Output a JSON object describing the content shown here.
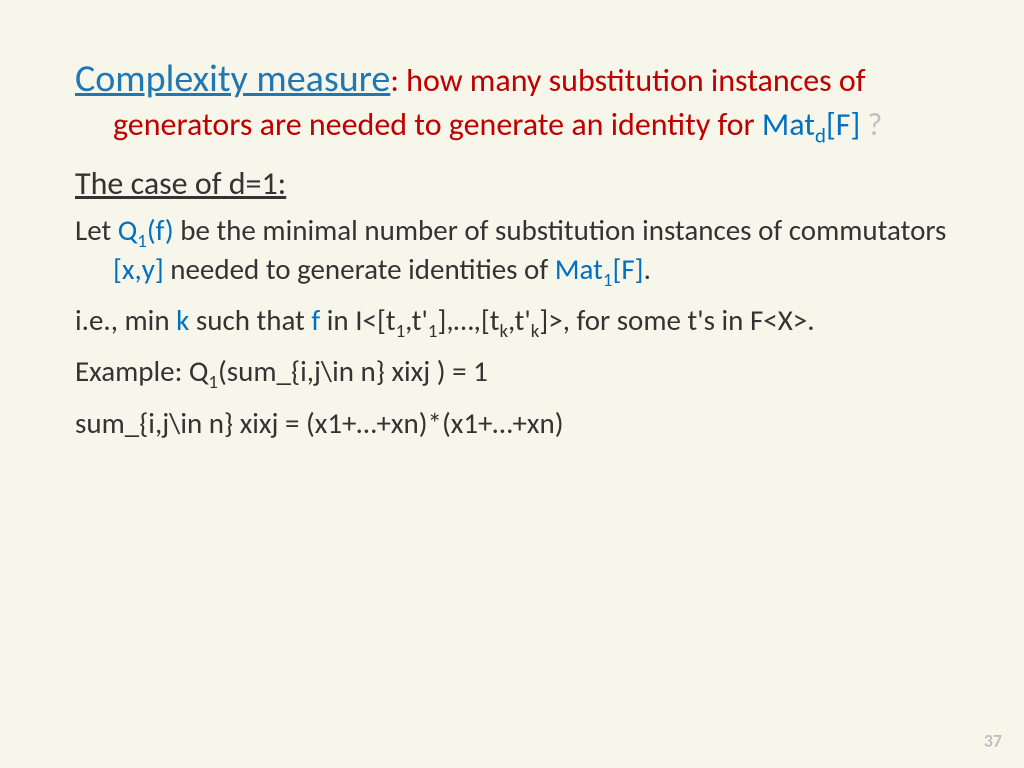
{
  "background_color": "#f7f6ea",
  "text_color": "#333333",
  "colors": {
    "blue": "#0070c0",
    "red": "#c00000",
    "gray": "#bfbfbf",
    "link_blue": "#1f77b4"
  },
  "font_family": "Calibri",
  "title": {
    "heading": "Complexity measure",
    "rest_before": ": how many substitution instances of generators are needed to generate an identity for ",
    "mat": "Mat",
    "mat_sub": "d",
    "mat_after": "[F] ",
    "qmark": "?",
    "heading_fontsize": 38,
    "rest_fontsize": 32
  },
  "subhead": {
    "text": "The case of d=1:",
    "fontsize": 32
  },
  "p1": {
    "a": "Let ",
    "q": "Q",
    "q_sub": "1",
    "q_after": "(f) ",
    "b": "be the minimal number of substitution instances of commutators ",
    "xy": "[x,y] ",
    "c": "needed to generate identities of ",
    "mat": "Mat",
    "mat_sub": "1",
    "mat_after": "[F]",
    "dot": "."
  },
  "p2": {
    "a": "i.e., min ",
    "k": "k ",
    "b": "such that ",
    "f": "f ",
    "c": "in I<[t",
    "s1": "1",
    "d": ",t'",
    "s2": "1",
    "e": "],…,[t",
    "s3": "k",
    "g": ",t'",
    "s4": "k",
    "h": "]>, for some t's in F<X>."
  },
  "p3": {
    "a": "Example: Q",
    "s1": "1",
    "b": "(sum_{i,j\\in n} xixj ) = 1"
  },
  "p4": {
    "a": "sum_{i,j\\in n} xixj = (x1+…+xn)*(x1+…+xn)"
  },
  "page_number": "37",
  "body_fontsize": 29
}
